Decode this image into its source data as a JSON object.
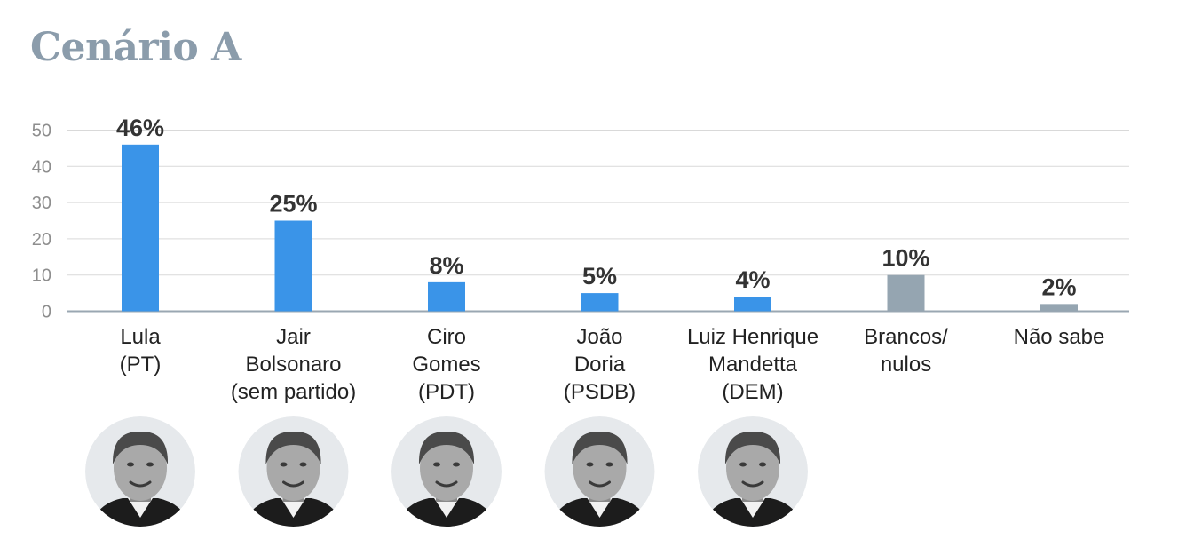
{
  "chart_data": {
    "type": "bar",
    "title": "Cenário A",
    "ylim": [
      0,
      50
    ],
    "yticks": [
      0,
      10,
      20,
      30,
      40,
      50
    ],
    "grid": true,
    "categories": [
      [
        "Lula",
        "(PT)"
      ],
      [
        "Jair",
        "Bolsonaro",
        "(sem partido)"
      ],
      [
        "Ciro",
        "Gomes",
        "(PDT)"
      ],
      [
        "João",
        "Doria",
        "(PSDB)"
      ],
      [
        "Luiz Henrique",
        "Mandetta",
        "(DEM)"
      ],
      [
        "Brancos/",
        "nulos"
      ],
      [
        "Não sabe"
      ]
    ],
    "values": [
      46,
      25,
      8,
      5,
      4,
      10,
      2
    ],
    "value_labels": [
      "46%",
      "25%",
      "8%",
      "5%",
      "4%",
      "10%",
      "2%"
    ],
    "bar_colors": [
      "#3a94e8",
      "#3a94e8",
      "#3a94e8",
      "#3a94e8",
      "#3a94e8",
      "#95a5b1",
      "#95a5b1"
    ],
    "candidate_photos": [
      "candidate-photo-lula",
      "candidate-photo-bolsonaro",
      "candidate-photo-ciro-gomes",
      "candidate-photo-joao-doria",
      "candidate-photo-mandetta"
    ]
  }
}
